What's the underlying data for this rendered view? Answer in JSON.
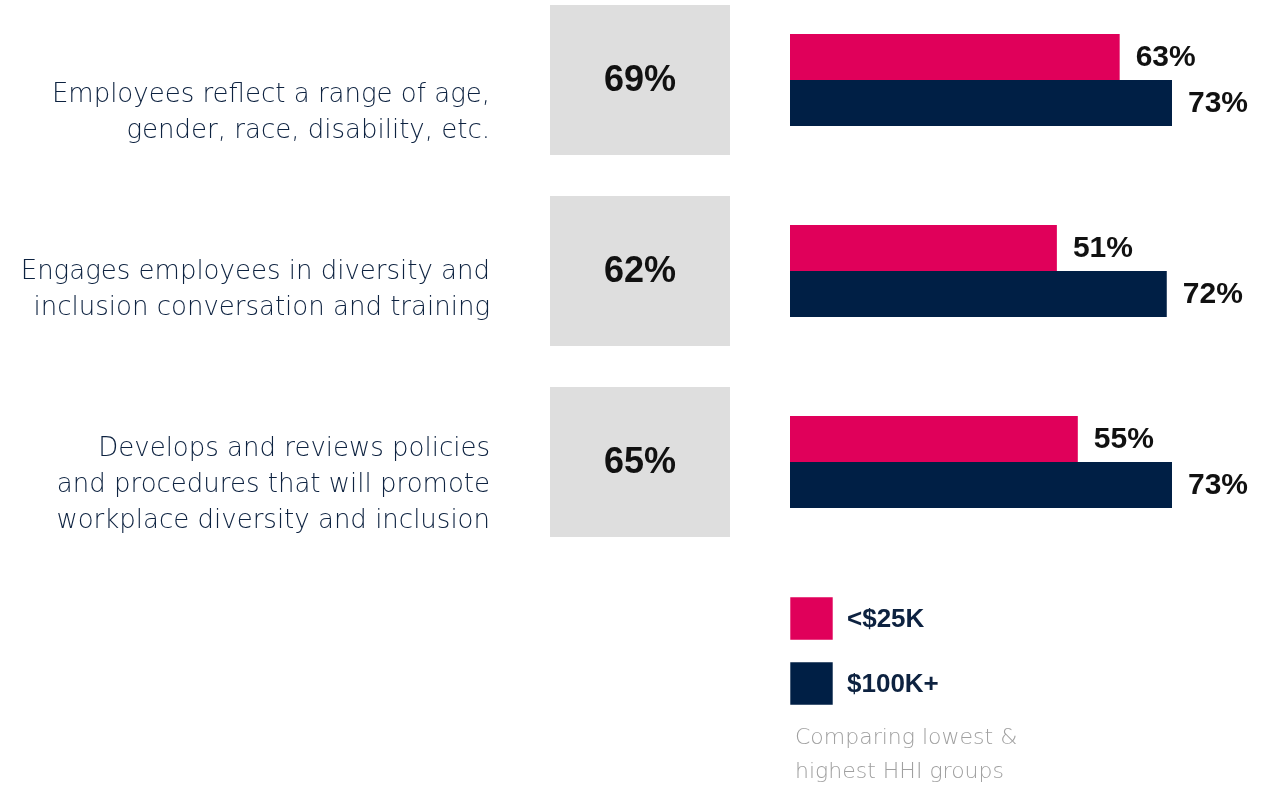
{
  "chart_data": {
    "type": "bar",
    "orientation": "horizontal",
    "categories": [
      "Employees reflect a range of age,\ngender, race, disability, etc.",
      "Engages employees in diversity and\ninclusion conversation and training",
      "Develops and reviews policies\nand procedures that will promote\nworkplace diversity and inclusion"
    ],
    "series": [
      {
        "name": "<$25K",
        "color": "#e0005a",
        "values": [
          63,
          51,
          55
        ],
        "value_labels": [
          "63%",
          "51%",
          "55%"
        ]
      },
      {
        "name": "$100K+",
        "color": "#001f45",
        "values": [
          73,
          72,
          73
        ],
        "value_labels": [
          "73%",
          "72%",
          "73%"
        ]
      }
    ],
    "annotations": [
      "69%",
      "62%",
      "65%",
      "Comparing lowest &\nhighest HHI groups"
    ],
    "legend": "bottom"
  }
}
